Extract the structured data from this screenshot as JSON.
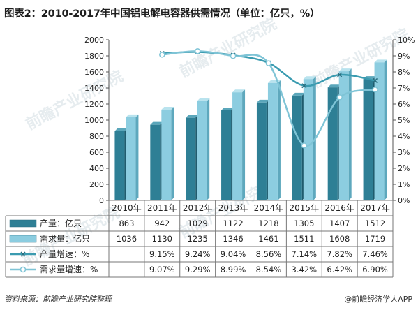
{
  "title": "图表2：2010-2017年中国铝电解电容器供需情况（单位：亿只，%）",
  "footer": {
    "source": "资料来源：前瞻产业研究院整理",
    "brand": "@前瞻经济学人APP"
  },
  "watermark": "前瞻产业研究院",
  "colors": {
    "production_bar": "#2e7f95",
    "demand_bar": "#8ccde0",
    "production_line": "#3a9bb0",
    "demand_line": "#7fc4d6"
  },
  "chart_data": {
    "type": "bar",
    "categories": [
      "2010年",
      "2011年",
      "2012年",
      "2013年",
      "2014年",
      "2015年",
      "2016年",
      "2017年"
    ],
    "series": [
      {
        "name": "产量：亿只",
        "type": "bar",
        "values": [
          863,
          942,
          1029,
          1122,
          1218,
          1305,
          1407,
          1512
        ]
      },
      {
        "name": "需求量：亿只",
        "type": "bar",
        "values": [
          1036,
          1130,
          1235,
          1346,
          1461,
          1511,
          1608,
          1719
        ]
      },
      {
        "name": "产量增速：%",
        "type": "line",
        "axis": "right",
        "values": [
          null,
          9.15,
          9.24,
          9.04,
          8.56,
          7.14,
          7.82,
          7.46
        ],
        "labels": [
          "",
          "9.15%",
          "9.24%",
          "9.04%",
          "8.56%",
          "7.14%",
          "7.82%",
          "7.46%"
        ]
      },
      {
        "name": "需求量增速：%",
        "type": "line",
        "axis": "right",
        "values": [
          null,
          9.07,
          9.29,
          8.99,
          8.54,
          3.42,
          6.42,
          6.9
        ],
        "labels": [
          "",
          "9.07%",
          "9.29%",
          "8.99%",
          "8.54%",
          "3.42%",
          "6.42%",
          "6.90%"
        ]
      }
    ],
    "yleft": {
      "min": 0,
      "max": 2000,
      "ticks": [
        "0",
        "200",
        "400",
        "600",
        "800",
        "1000",
        "1200",
        "1400",
        "1600",
        "1800",
        "2000"
      ]
    },
    "yright": {
      "min": 0,
      "max": 10,
      "ticks": [
        "0%",
        "1%",
        "2%",
        "3%",
        "4%",
        "5%",
        "6%",
        "7%",
        "8%",
        "9%",
        "10%"
      ]
    },
    "legend": "table-below",
    "grid": false
  }
}
